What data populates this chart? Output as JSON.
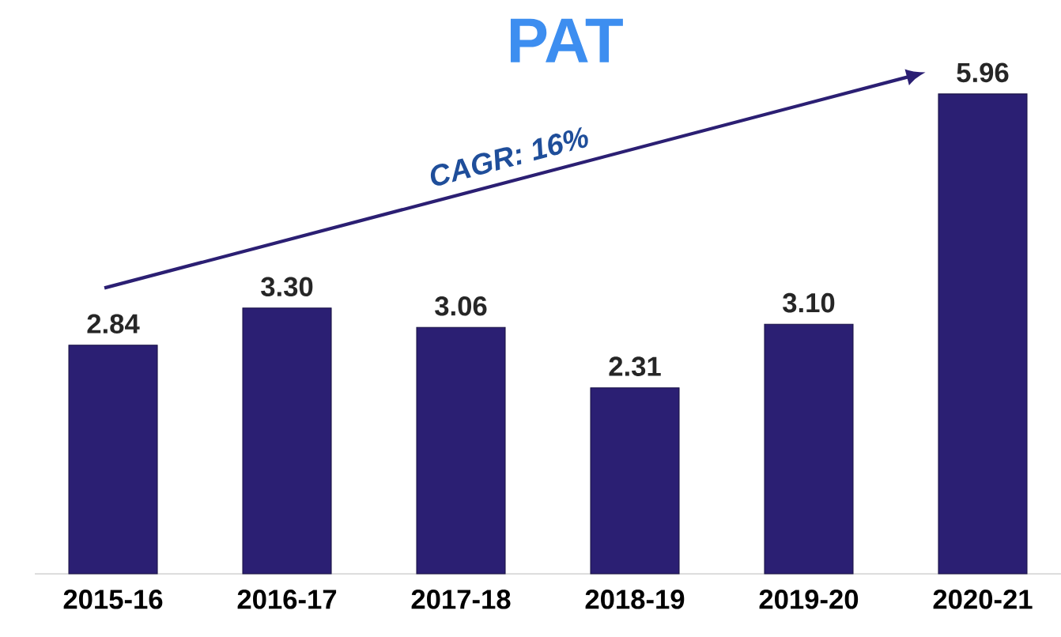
{
  "chart_data": {
    "type": "bar",
    "title": "PAT",
    "categories": [
      "2015-16",
      "2016-17",
      "2017-18",
      "2018-19",
      "2019-20",
      "2020-21"
    ],
    "values": [
      2.84,
      3.3,
      3.06,
      2.31,
      3.1,
      5.96
    ],
    "value_labels": [
      "2.84",
      "3.30",
      "3.06",
      "2.31",
      "3.10",
      "5.96"
    ],
    "color": "#2b1f73",
    "annotations": [
      "CAGR: 16%"
    ]
  }
}
